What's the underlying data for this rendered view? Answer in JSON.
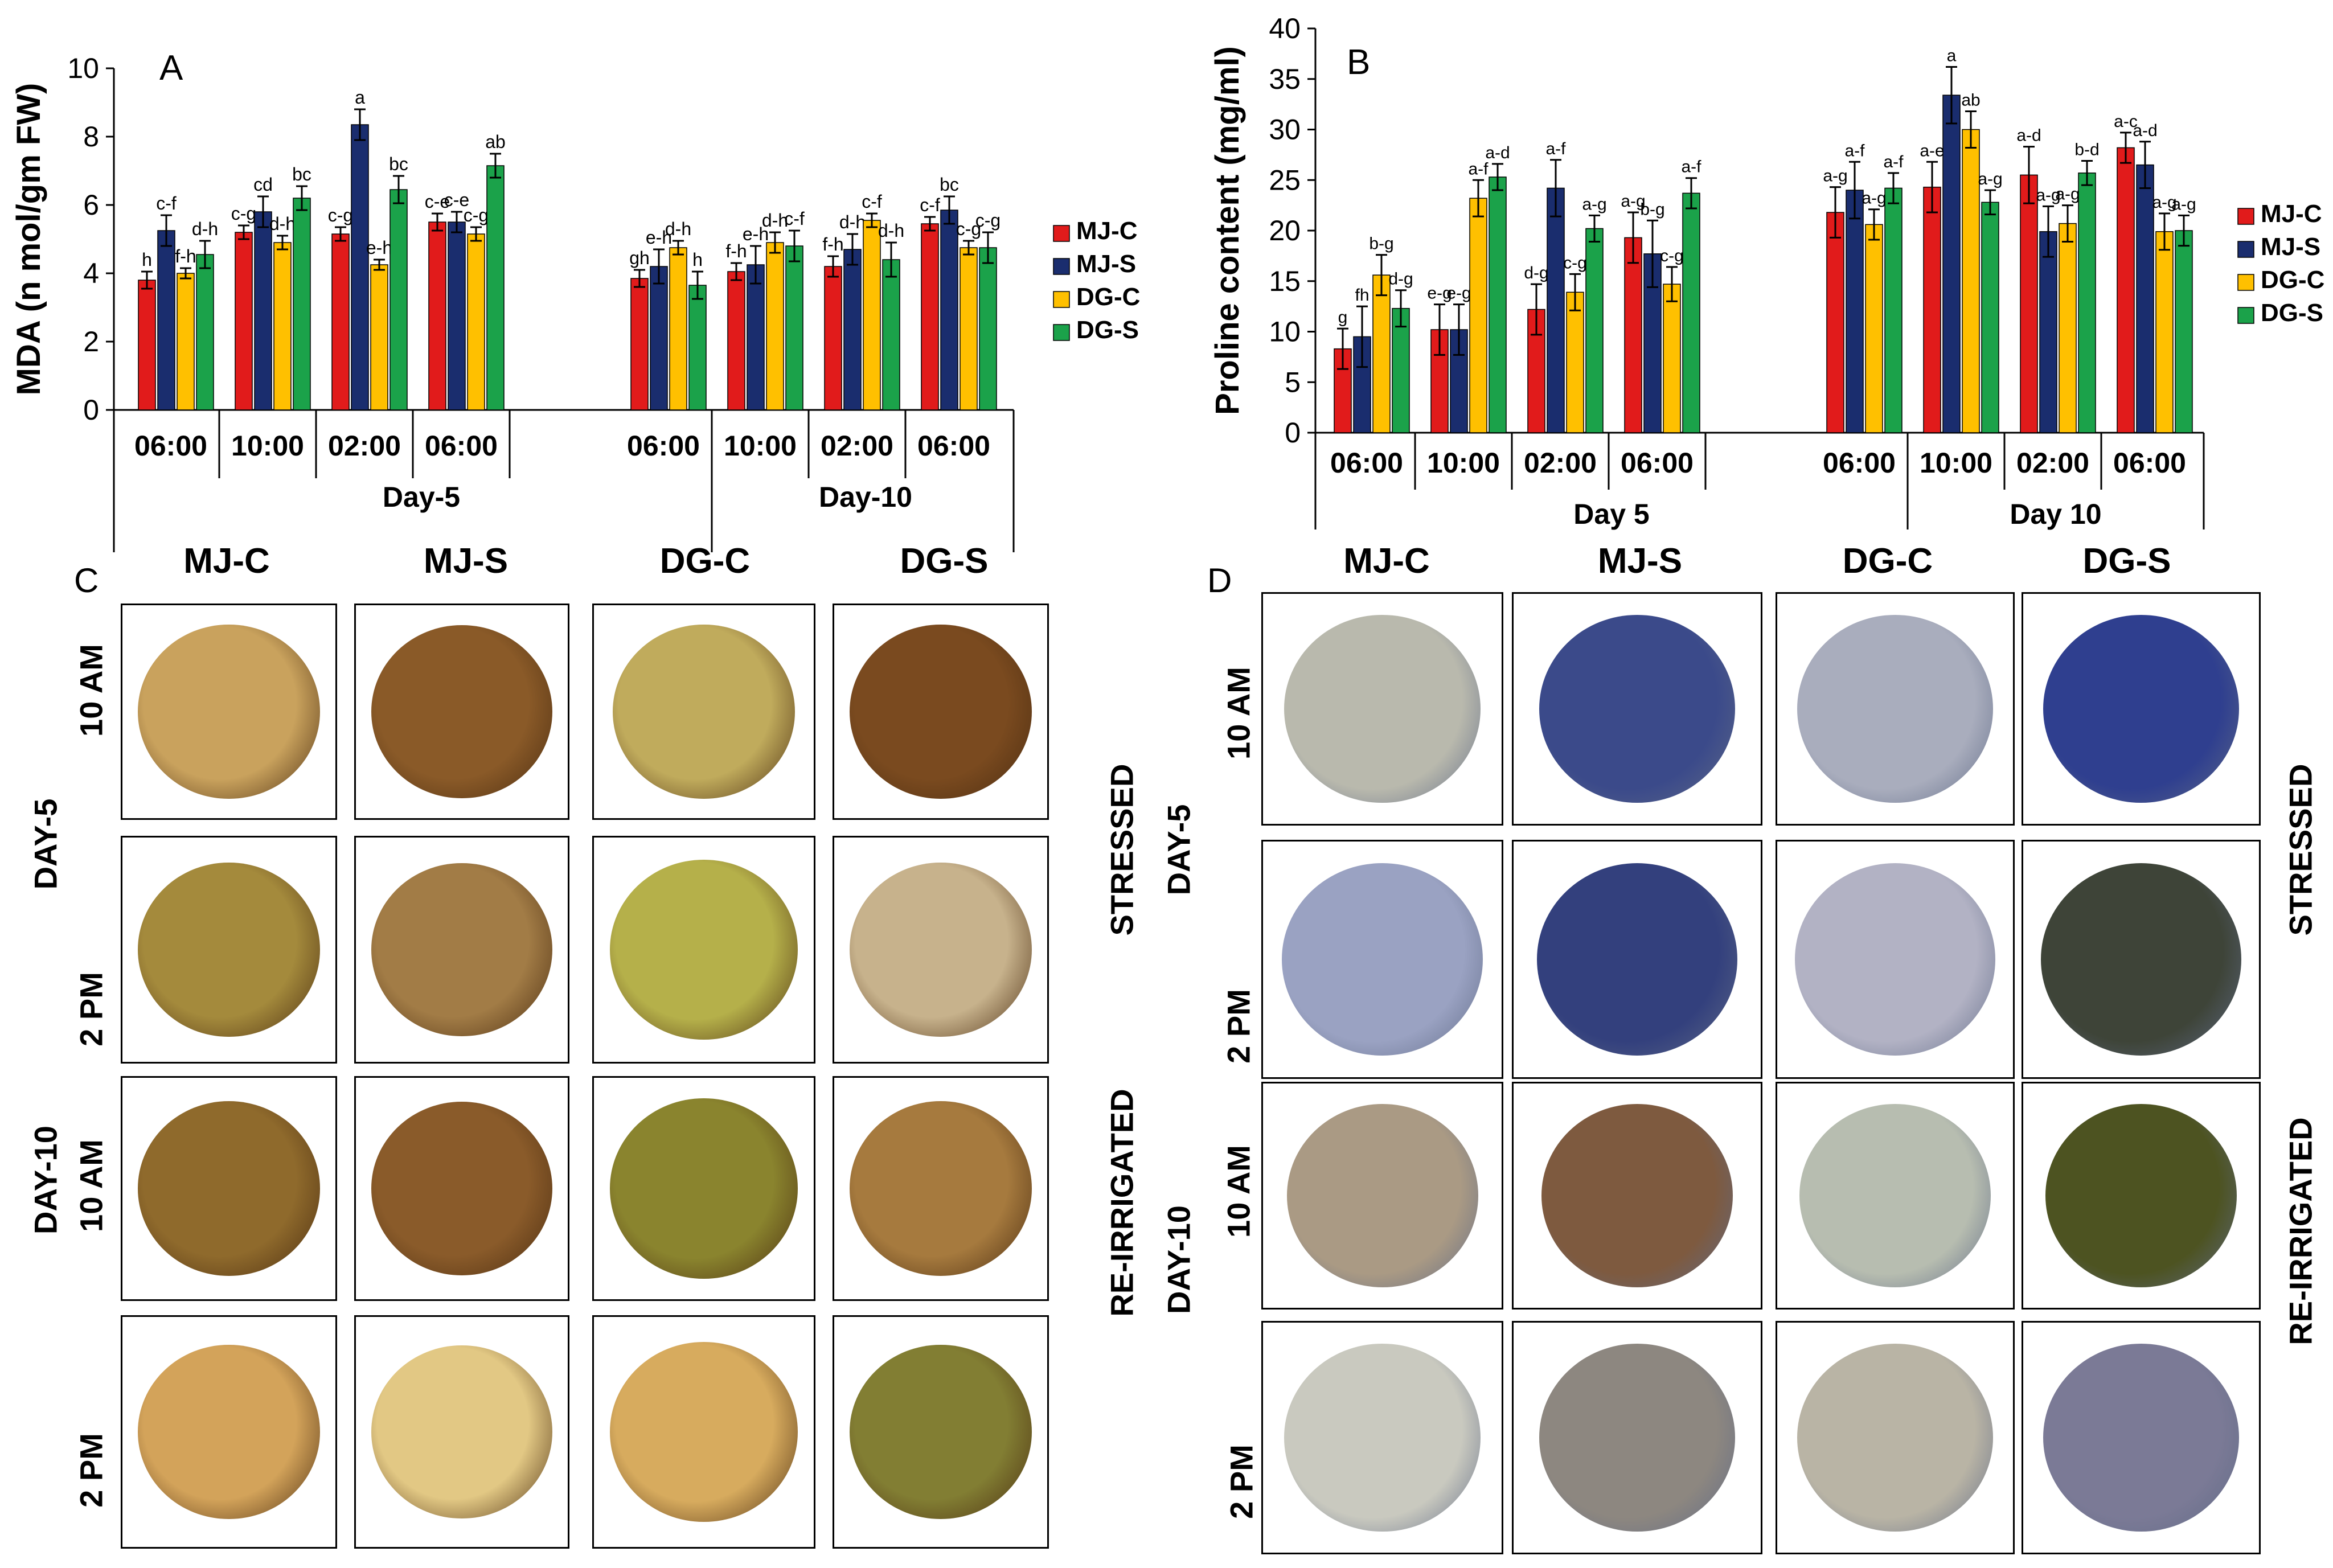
{
  "colors": {
    "MJ-C": "#e11b1b",
    "MJ-S": "#1a2d6e",
    "DG-C": "#ffc000",
    "DG-S": "#1ba24a"
  },
  "chart_data": [
    {
      "panel": "A",
      "type": "bar",
      "ylabel": "MDA (n mol/gm FW)",
      "ylim": [
        0,
        10
      ],
      "yticks": [
        0,
        2,
        4,
        6,
        8,
        10
      ],
      "series_names": [
        "MJ-C",
        "MJ-S",
        "DG-C",
        "DG-S"
      ],
      "groups": [
        {
          "label": "06:00",
          "day": "Day-5",
          "values": [
            3.8,
            5.25,
            4.0,
            4.55
          ],
          "errors": [
            0.25,
            0.45,
            0.15,
            0.4
          ],
          "letters": [
            "h",
            "c-f",
            "f-h",
            "d-h"
          ]
        },
        {
          "label": "10:00",
          "day": "Day-5",
          "values": [
            5.2,
            5.8,
            4.9,
            6.2
          ],
          "errors": [
            0.2,
            0.45,
            0.2,
            0.35
          ],
          "letters": [
            "c-g",
            "cd",
            "d-h",
            "bc"
          ]
        },
        {
          "label": "02:00",
          "day": "Day-5",
          "values": [
            5.15,
            8.35,
            4.25,
            6.45
          ],
          "errors": [
            0.2,
            0.45,
            0.15,
            0.4
          ],
          "letters": [
            "c-g",
            "a",
            "e-h",
            "bc"
          ]
        },
        {
          "label": "06:00",
          "day": "Day-5",
          "values": [
            5.5,
            5.5,
            5.15,
            7.15
          ],
          "errors": [
            0.25,
            0.3,
            0.2,
            0.35
          ],
          "letters": [
            "c-e",
            "c-e",
            "c-g",
            "ab"
          ]
        },
        {
          "label": "06:00",
          "day": "Day-10",
          "values": [
            3.85,
            4.2,
            4.75,
            3.65
          ],
          "errors": [
            0.25,
            0.5,
            0.2,
            0.4
          ],
          "letters": [
            "gh",
            "e-h",
            "d-h",
            "h"
          ]
        },
        {
          "label": "10:00",
          "day": "Day-10",
          "values": [
            4.05,
            4.25,
            4.9,
            4.8
          ],
          "errors": [
            0.25,
            0.55,
            0.3,
            0.45
          ],
          "letters": [
            "f-h",
            "e-h",
            "d-h",
            "c-f"
          ]
        },
        {
          "label": "02:00",
          "day": "Day-10",
          "values": [
            4.2,
            4.7,
            5.55,
            4.4
          ],
          "errors": [
            0.3,
            0.45,
            0.2,
            0.5
          ],
          "letters": [
            "f-h",
            "d-h",
            "c-f",
            "d-h"
          ]
        },
        {
          "label": "06:00",
          "day": "Day-10",
          "values": [
            5.45,
            5.85,
            4.75,
            4.75
          ],
          "errors": [
            0.2,
            0.4,
            0.2,
            0.45
          ],
          "letters": [
            "c-f",
            "bc",
            "c-g",
            "c-g"
          ]
        }
      ],
      "days": [
        "Day-5",
        "Day-10"
      ],
      "legend": [
        "MJ-C",
        "MJ-S",
        "DG-C",
        "DG-S"
      ]
    },
    {
      "panel": "B",
      "type": "bar",
      "ylabel": "Proline content (mg/ml)",
      "ylim": [
        0,
        40
      ],
      "yticks": [
        0,
        5,
        10,
        15,
        20,
        25,
        30,
        35,
        40
      ],
      "series_names": [
        "MJ-C",
        "MJ-S",
        "DG-C",
        "DG-S"
      ],
      "groups": [
        {
          "label": "06:00",
          "day": "Day 5",
          "values": [
            8.3,
            9.5,
            15.6,
            12.3
          ],
          "errors": [
            2.0,
            3.0,
            2.0,
            1.8
          ],
          "letters": [
            "g",
            "fh",
            "b-g",
            "d-g"
          ]
        },
        {
          "label": "10:00",
          "day": "Day 5",
          "values": [
            10.2,
            10.2,
            23.2,
            25.3
          ],
          "errors": [
            2.5,
            2.5,
            1.8,
            1.3
          ],
          "letters": [
            "e-g",
            "e-g",
            "a-f",
            "a-d"
          ]
        },
        {
          "label": "02:00",
          "day": "Day 5",
          "values": [
            12.2,
            24.2,
            13.9,
            20.2
          ],
          "errors": [
            2.5,
            2.8,
            1.8,
            1.3
          ],
          "letters": [
            "d-g",
            "a-f",
            "c-g",
            "a-g"
          ]
        },
        {
          "label": "06:00",
          "day": "Day 5",
          "values": [
            19.3,
            17.7,
            14.7,
            23.7
          ],
          "errors": [
            2.5,
            3.3,
            1.7,
            1.5
          ],
          "letters": [
            "a-g",
            "b-g",
            "c-g",
            "a-f"
          ]
        },
        {
          "label": "06:00",
          "day": "Day 10",
          "values": [
            21.8,
            24.0,
            20.6,
            24.2
          ],
          "errors": [
            2.5,
            2.8,
            1.5,
            1.5
          ],
          "letters": [
            "a-g",
            "a-f",
            "a-g",
            "a-f"
          ]
        },
        {
          "label": "10:00",
          "day": "Day 10",
          "values": [
            24.3,
            33.4,
            30.0,
            22.8
          ],
          "errors": [
            2.5,
            2.8,
            1.8,
            1.2
          ],
          "letters": [
            "a-e",
            "a",
            "ab",
            "a-g"
          ]
        },
        {
          "label": "02:00",
          "day": "Day 10",
          "values": [
            25.5,
            19.9,
            20.7,
            25.7
          ],
          "errors": [
            2.8,
            2.5,
            1.8,
            1.2
          ],
          "letters": [
            "a-d",
            "a-g",
            "a-g",
            "b-d"
          ]
        },
        {
          "label": "06:00",
          "day": "Day 10",
          "values": [
            28.2,
            26.5,
            19.9,
            20.0
          ],
          "errors": [
            1.5,
            2.3,
            1.8,
            1.5
          ],
          "letters": [
            "a-c",
            "a-d",
            "a-g",
            "a-g"
          ]
        }
      ],
      "days": [
        "Day 5",
        "Day 10"
      ],
      "legend": [
        "MJ-C",
        "MJ-S",
        "DG-C",
        "DG-S"
      ]
    }
  ],
  "panel_letters": {
    "A": "A",
    "B": "B",
    "C": "C",
    "D": "D"
  },
  "panel_C": {
    "columns": [
      "MJ-C",
      "MJ-S",
      "DG-C",
      "DG-S"
    ],
    "day5": "DAY-5",
    "day10": "DAY-10",
    "rows": [
      "10 AM",
      "2 PM",
      "10 AM",
      "2 PM"
    ],
    "stressed": "STRESSED",
    "reirrigated": "RE-IRRIGATED"
  },
  "panel_D": {
    "columns": [
      "MJ-C",
      "MJ-S",
      "DG-C",
      "DG-S"
    ],
    "day5": "DAY-5",
    "day10": "DAY-10",
    "rows": [
      "10 AM",
      "2 PM",
      "10 AM",
      "2 PM"
    ],
    "stressed": "STRESSED",
    "reirrigated": "RE-IRRIGATED"
  },
  "leaf_colors_C": [
    [
      "#c9a25d",
      "#8a5a28",
      "#c0ab5c",
      "#7a4a1f"
    ],
    [
      "#a48a3c",
      "#a27c46",
      "#b5b04a",
      "#c7b28c"
    ],
    [
      "#8f6a2c",
      "#8a5b2a",
      "#8a842e",
      "#a67a3e"
    ],
    [
      "#d3a35a",
      "#e2c884",
      "#d7ab5e",
      "#827e33"
    ]
  ],
  "leaf_colors_D": [
    [
      "#b9b9ad",
      "#3b4a8a",
      "#a9adbd",
      "#2f3f8f"
    ],
    [
      "#9aa2c2",
      "#33407d",
      "#b2b2c4",
      "#3e4438"
    ],
    [
      "#aa9a84",
      "#7e5a3f",
      "#b7bdb0",
      "#4d5321"
    ],
    [
      "#c9c9bf",
      "#8d8780",
      "#b9b4a5",
      "#7b7a96"
    ]
  ]
}
